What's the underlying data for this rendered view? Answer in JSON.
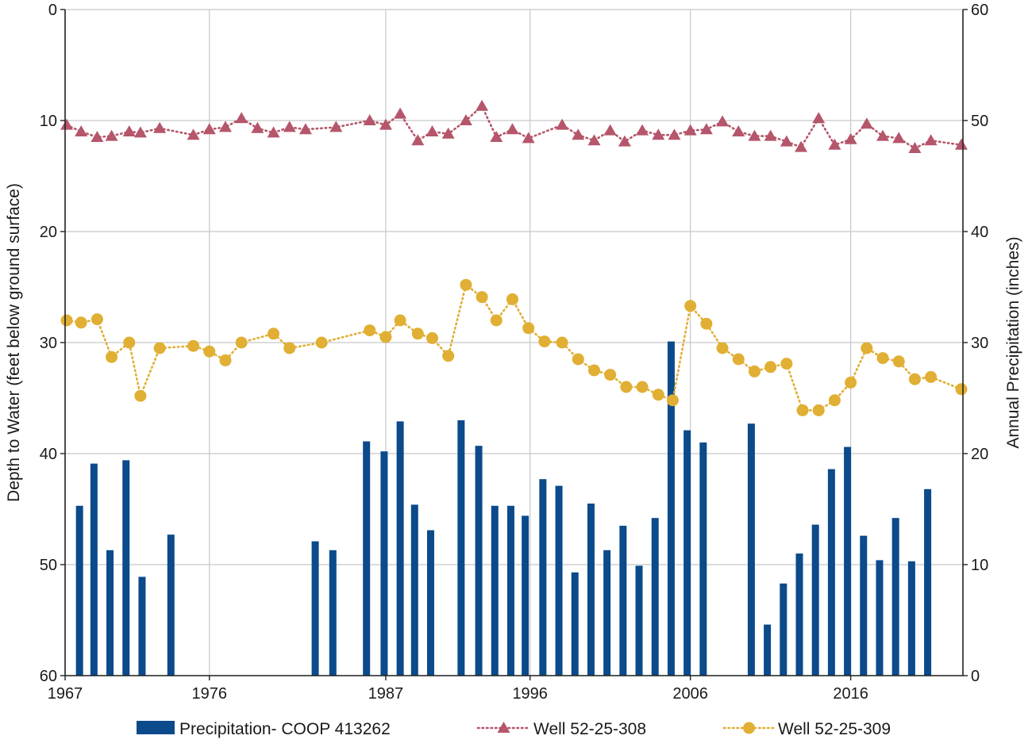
{
  "chart_data": {
    "type": "bar+line",
    "x_axis": {
      "ticks": [
        1967,
        1976,
        1987,
        1996,
        2006,
        2016
      ],
      "range": [
        1967,
        2023
      ]
    },
    "y_left": {
      "label": "Depth to Water (feet below ground surface)",
      "range": [
        0,
        60
      ],
      "inverted": true,
      "ticks": [
        0,
        10,
        20,
        30,
        40,
        50,
        60
      ]
    },
    "y_right": {
      "label": "Annual Precipitation (inches)",
      "range": [
        0,
        60
      ],
      "ticks": [
        0,
        10,
        20,
        30,
        40,
        50,
        60
      ]
    },
    "grid": true,
    "legend_position": "bottom",
    "series": [
      {
        "name": "Precipitation- COOP 413262",
        "kind": "bar",
        "axis": "right",
        "color": "#0b4a8b",
        "points": [
          [
            1967.9,
            15.3
          ],
          [
            1968.8,
            19.1
          ],
          [
            1969.8,
            11.3
          ],
          [
            1970.8,
            19.4
          ],
          [
            1971.8,
            8.9
          ],
          [
            1973.6,
            12.7
          ],
          [
            1982.6,
            12.1
          ],
          [
            1983.7,
            11.3
          ],
          [
            1985.8,
            21.1
          ],
          [
            1986.9,
            20.2
          ],
          [
            1987.9,
            22.9
          ],
          [
            1988.8,
            15.4
          ],
          [
            1989.8,
            13.1
          ],
          [
            1991.7,
            23.0
          ],
          [
            1992.8,
            20.7
          ],
          [
            1993.8,
            15.3
          ],
          [
            1994.8,
            15.3
          ],
          [
            1995.7,
            14.4
          ],
          [
            1996.8,
            17.7
          ],
          [
            1997.8,
            17.1
          ],
          [
            1998.8,
            9.3
          ],
          [
            1999.8,
            15.5
          ],
          [
            2000.8,
            11.3
          ],
          [
            2001.8,
            13.5
          ],
          [
            2002.8,
            9.9
          ],
          [
            2003.8,
            14.2
          ],
          [
            2004.8,
            30.1
          ],
          [
            2005.8,
            22.1
          ],
          [
            2006.8,
            21.0
          ],
          [
            2009.8,
            22.7
          ],
          [
            2010.8,
            4.6
          ],
          [
            2011.8,
            8.3
          ],
          [
            2012.8,
            11.0
          ],
          [
            2013.8,
            13.6
          ],
          [
            2014.8,
            18.6
          ],
          [
            2015.8,
            20.6
          ],
          [
            2016.8,
            12.6
          ],
          [
            2017.8,
            10.4
          ],
          [
            2018.8,
            14.2
          ],
          [
            2019.8,
            10.3
          ],
          [
            2020.8,
            16.8
          ]
        ]
      },
      {
        "name": "Well 52-25-308",
        "kind": "line",
        "axis": "left",
        "color": "#b5566b",
        "marker": "triangle",
        "line_style": "dotted",
        "points": [
          [
            1967.1,
            10.4
          ],
          [
            1968.0,
            11.0
          ],
          [
            1969.0,
            11.5
          ],
          [
            1969.9,
            11.4
          ],
          [
            1971.0,
            11.0
          ],
          [
            1971.7,
            11.1
          ],
          [
            1972.9,
            10.7
          ],
          [
            1975.0,
            11.3
          ],
          [
            1976.0,
            10.8
          ],
          [
            1977.0,
            10.6
          ],
          [
            1978.0,
            9.8
          ],
          [
            1979.0,
            10.7
          ],
          [
            1980.0,
            11.1
          ],
          [
            1981.0,
            10.6
          ],
          [
            1982.0,
            10.8
          ],
          [
            1983.9,
            10.6
          ],
          [
            1986.0,
            10.0
          ],
          [
            1987.0,
            10.4
          ],
          [
            1987.9,
            9.4
          ],
          [
            1989.0,
            11.8
          ],
          [
            1989.9,
            11.0
          ],
          [
            1990.9,
            11.2
          ],
          [
            1992.0,
            10.0
          ],
          [
            1993.0,
            8.7
          ],
          [
            1993.9,
            11.5
          ],
          [
            1994.9,
            10.8
          ],
          [
            1995.9,
            11.6
          ],
          [
            1998.0,
            10.4
          ],
          [
            1999.0,
            11.3
          ],
          [
            2000.0,
            11.8
          ],
          [
            2001.0,
            10.9
          ],
          [
            2001.9,
            11.9
          ],
          [
            2003.0,
            10.9
          ],
          [
            2004.0,
            11.3
          ],
          [
            2005.0,
            11.3
          ],
          [
            2006.0,
            10.9
          ],
          [
            2007.0,
            10.8
          ],
          [
            2008.0,
            10.1
          ],
          [
            2009.0,
            11.0
          ],
          [
            2010.0,
            11.4
          ],
          [
            2011.0,
            11.4
          ],
          [
            2012.0,
            11.9
          ],
          [
            2012.9,
            12.4
          ],
          [
            2014.0,
            9.8
          ],
          [
            2015.0,
            12.2
          ],
          [
            2016.0,
            11.7
          ],
          [
            2017.0,
            10.3
          ],
          [
            2018.0,
            11.4
          ],
          [
            2019.0,
            11.6
          ],
          [
            2020.0,
            12.5
          ],
          [
            2021.0,
            11.8
          ],
          [
            2022.9,
            12.2
          ],
          [
            2023.0,
            11.5
          ]
        ]
      },
      {
        "name": "Well 52-25-309",
        "kind": "line",
        "axis": "left",
        "color": "#e0af33",
        "marker": "circle",
        "line_style": "dotted",
        "points": [
          [
            1967.1,
            28.0
          ],
          [
            1968.0,
            28.2
          ],
          [
            1969.0,
            27.9
          ],
          [
            1969.9,
            31.3
          ],
          [
            1971.0,
            30.0
          ],
          [
            1971.7,
            34.8
          ],
          [
            1972.9,
            30.5
          ],
          [
            1975.0,
            30.3
          ],
          [
            1976.0,
            30.8
          ],
          [
            1977.0,
            31.6
          ],
          [
            1978.0,
            30.0
          ],
          [
            1980.0,
            29.2
          ],
          [
            1981.0,
            30.5
          ],
          [
            1983.0,
            30.0
          ],
          [
            1986.0,
            28.9
          ],
          [
            1987.0,
            29.5
          ],
          [
            1987.9,
            28.0
          ],
          [
            1989.0,
            29.2
          ],
          [
            1989.9,
            29.6
          ],
          [
            1990.9,
            31.2
          ],
          [
            1992.0,
            24.8
          ],
          [
            1993.0,
            25.9
          ],
          [
            1993.9,
            28.0
          ],
          [
            1994.9,
            26.1
          ],
          [
            1995.9,
            28.7
          ],
          [
            1996.9,
            29.9
          ],
          [
            1998.0,
            30.0
          ],
          [
            1999.0,
            31.5
          ],
          [
            2000.0,
            32.5
          ],
          [
            2001.0,
            32.9
          ],
          [
            2002.0,
            34.0
          ],
          [
            2003.0,
            34.0
          ],
          [
            2004.0,
            34.7
          ],
          [
            2004.9,
            35.2
          ],
          [
            2006.0,
            26.7
          ],
          [
            2007.0,
            28.3
          ],
          [
            2008.0,
            30.5
          ],
          [
            2009.0,
            31.5
          ],
          [
            2010.0,
            32.6
          ],
          [
            2011.0,
            32.2
          ],
          [
            2012.0,
            31.9
          ],
          [
            2013.0,
            36.1
          ],
          [
            2014.0,
            36.1
          ],
          [
            2015.0,
            35.2
          ],
          [
            2016.0,
            33.6
          ],
          [
            2017.0,
            30.5
          ],
          [
            2018.0,
            31.4
          ],
          [
            2019.0,
            31.7
          ],
          [
            2020.0,
            33.3
          ],
          [
            2021.0,
            33.1
          ],
          [
            2022.9,
            34.2
          ]
        ]
      }
    ]
  }
}
